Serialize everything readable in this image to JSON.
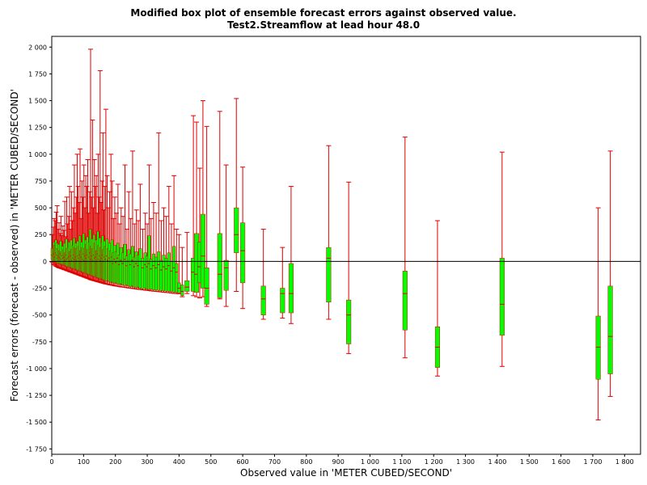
{
  "chart_data": {
    "type": "boxplot",
    "title": "Modified box plot of ensemble forecast errors against observed value.",
    "subtitle": "Test2.Streamflow at lead hour 48.0",
    "xlabel": "Observed value in 'METER CUBED/SECOND'",
    "ylabel": "Forecast errors (forecast - observed) in 'METER CUBED/SECOND'",
    "xlim": [
      0,
      1850
    ],
    "ylim": [
      -1800,
      2100
    ],
    "xticks": [
      0,
      100,
      200,
      300,
      400,
      500,
      600,
      700,
      800,
      900,
      1000,
      1100,
      1200,
      1300,
      1400,
      1500,
      1600,
      1700,
      1800
    ],
    "xtick_labels": [
      "0",
      "100",
      "200",
      "300",
      "400",
      "500",
      "600",
      "700",
      "800",
      "900",
      "1 000",
      "1 100",
      "1 200",
      "1 300",
      "1 400",
      "1 500",
      "1 600",
      "1 700",
      "1 800"
    ],
    "yticks": [
      -1750,
      -1500,
      -1250,
      -1000,
      -750,
      -500,
      -250,
      0,
      250,
      500,
      750,
      1000,
      1250,
      1500,
      1750,
      2000
    ],
    "ytick_labels": [
      "-1 750",
      "-1 500",
      "-1 250",
      "-1 000",
      "-750",
      "-500",
      "-250",
      "0",
      "250",
      "500",
      "750",
      "1 000",
      "1 250",
      "1 500",
      "1 750",
      "2 000"
    ],
    "zero_line": true,
    "grid": false,
    "colors": {
      "whisker": "#dd0000",
      "box": "#00ff00",
      "zero_line": "#000000",
      "median": "#dd0000"
    },
    "boxes": [
      {
        "x": 2,
        "min": -10,
        "q1": 20,
        "median": 60,
        "q3": 120,
        "max": 250
      },
      {
        "x": 5,
        "min": -25,
        "q1": 0,
        "median": 50,
        "q3": 110,
        "max": 320
      },
      {
        "x": 8,
        "min": -30,
        "q1": 10,
        "median": 70,
        "q3": 180,
        "max": 400
      },
      {
        "x": 11,
        "min": -40,
        "q1": -5,
        "median": 40,
        "q3": 150,
        "max": 380
      },
      {
        "x": 14,
        "min": -45,
        "q1": 0,
        "median": 80,
        "q3": 200,
        "max": 460
      },
      {
        "x": 17,
        "min": -50,
        "q1": -10,
        "median": 60,
        "q3": 170,
        "max": 520
      },
      {
        "x": 20,
        "min": -55,
        "q1": -20,
        "median": 30,
        "q3": 120,
        "max": 300
      },
      {
        "x": 23,
        "min": -60,
        "q1": -15,
        "median": 50,
        "q3": 160,
        "max": 360
      },
      {
        "x": 26,
        "min": -62,
        "q1": -25,
        "median": 35,
        "q3": 100,
        "max": 260
      },
      {
        "x": 29,
        "min": -65,
        "q1": -20,
        "median": 70,
        "q3": 190,
        "max": 420
      },
      {
        "x": 32,
        "min": -68,
        "q1": -30,
        "median": 20,
        "q3": 90,
        "max": 240
      },
      {
        "x": 35,
        "min": -70,
        "q1": -25,
        "median": 55,
        "q3": 140,
        "max": 330
      },
      {
        "x": 38,
        "min": -75,
        "q1": -35,
        "median": 30,
        "q3": 110,
        "max": 290
      },
      {
        "x": 41,
        "min": -78,
        "q1": -30,
        "median": 40,
        "q3": 170,
        "max": 560
      },
      {
        "x": 44,
        "min": -80,
        "q1": -40,
        "median": 10,
        "q3": 80,
        "max": 230
      },
      {
        "x": 47,
        "min": -85,
        "q1": -45,
        "median": 60,
        "q3": 210,
        "max": 600
      },
      {
        "x": 50,
        "min": -88,
        "q1": -50,
        "median": 20,
        "q3": 120,
        "max": 350
      },
      {
        "x": 53,
        "min": -90,
        "q1": -45,
        "median": 30,
        "q3": 130,
        "max": 420
      },
      {
        "x": 56,
        "min": -95,
        "q1": -55,
        "median": 45,
        "q3": 180,
        "max": 700
      },
      {
        "x": 59,
        "min": -98,
        "q1": -60,
        "median": 0,
        "q3": 90,
        "max": 300
      },
      {
        "x": 62,
        "min": -100,
        "q1": -55,
        "median": 50,
        "q3": 200,
        "max": 650
      },
      {
        "x": 65,
        "min": -105,
        "q1": -65,
        "median": 10,
        "q3": 110,
        "max": 380
      },
      {
        "x": 68,
        "min": -108,
        "q1": -60,
        "median": 30,
        "q3": 150,
        "max": 500
      },
      {
        "x": 71,
        "min": -110,
        "q1": -70,
        "median": 60,
        "q3": 220,
        "max": 900
      },
      {
        "x": 74,
        "min": -115,
        "q1": -75,
        "median": 20,
        "q3": 130,
        "max": 450
      },
      {
        "x": 77,
        "min": -118,
        "q1": -70,
        "median": 40,
        "q3": 170,
        "max": 600
      },
      {
        "x": 80,
        "min": -120,
        "q1": -80,
        "median": 10,
        "q3": 120,
        "max": 1000
      },
      {
        "x": 83,
        "min": -125,
        "q1": -85,
        "median": 50,
        "q3": 190,
        "max": 700
      },
      {
        "x": 86,
        "min": -128,
        "q1": -80,
        "median": 30,
        "q3": 140,
        "max": 550
      },
      {
        "x": 89,
        "min": -130,
        "q1": -90,
        "median": 60,
        "q3": 240,
        "max": 1050
      },
      {
        "x": 92,
        "min": -135,
        "q1": -95,
        "median": 0,
        "q3": 100,
        "max": 400
      },
      {
        "x": 95,
        "min": -138,
        "q1": -90,
        "median": 40,
        "q3": 180,
        "max": 750
      },
      {
        "x": 98,
        "min": -140,
        "q1": -100,
        "median": 20,
        "q3": 130,
        "max": 600
      },
      {
        "x": 101,
        "min": -145,
        "q1": -105,
        "median": 70,
        "q3": 260,
        "max": 900
      },
      {
        "x": 104,
        "min": -148,
        "q1": -100,
        "median": 10,
        "q3": 120,
        "max": 500
      },
      {
        "x": 107,
        "min": -150,
        "q1": -110,
        "median": 50,
        "q3": 200,
        "max": 800
      },
      {
        "x": 110,
        "min": -155,
        "q1": -115,
        "median": 30,
        "q3": 160,
        "max": 700
      },
      {
        "x": 113,
        "min": -158,
        "q1": -110,
        "median": 60,
        "q3": 230,
        "max": 950
      },
      {
        "x": 116,
        "min": -160,
        "q1": -120,
        "median": 0,
        "q3": 110,
        "max": 450
      },
      {
        "x": 119,
        "min": -165,
        "q1": -125,
        "median": 40,
        "q3": 180,
        "max": 650
      },
      {
        "x": 122,
        "min": -170,
        "q1": -120,
        "median": 80,
        "q3": 300,
        "max": 1980
      },
      {
        "x": 125,
        "min": -172,
        "q1": -130,
        "median": 20,
        "q3": 140,
        "max": 600
      },
      {
        "x": 128,
        "min": -175,
        "q1": -135,
        "median": 50,
        "q3": 210,
        "max": 1320
      },
      {
        "x": 131,
        "min": -178,
        "q1": -130,
        "median": 10,
        "q3": 120,
        "max": 500
      },
      {
        "x": 134,
        "min": -180,
        "q1": -140,
        "median": 60,
        "q3": 250,
        "max": 950
      },
      {
        "x": 137,
        "min": -182,
        "q1": -145,
        "median": 30,
        "q3": 170,
        "max": 700
      },
      {
        "x": 140,
        "min": -185,
        "q1": -140,
        "median": 40,
        "q3": 200,
        "max": 800
      },
      {
        "x": 143,
        "min": -188,
        "q1": -150,
        "median": 0,
        "q3": 100,
        "max": 450
      },
      {
        "x": 146,
        "min": -190,
        "q1": -155,
        "median": 70,
        "q3": 280,
        "max": 1000
      },
      {
        "x": 149,
        "min": -192,
        "q1": -150,
        "median": 20,
        "q3": 150,
        "max": 600
      },
      {
        "x": 152,
        "min": -195,
        "q1": -160,
        "median": 50,
        "q3": 220,
        "max": 1780
      },
      {
        "x": 155,
        "min": -198,
        "q1": -165,
        "median": 10,
        "q3": 130,
        "max": 550
      },
      {
        "x": 158,
        "min": -200,
        "q1": -160,
        "median": 30,
        "q3": 180,
        "max": 750
      },
      {
        "x": 161,
        "min": -202,
        "q1": -170,
        "median": 60,
        "q3": 240,
        "max": 1200
      },
      {
        "x": 164,
        "min": -205,
        "q1": -175,
        "median": 0,
        "q3": 110,
        "max": 480
      },
      {
        "x": 167,
        "min": -208,
        "q1": -170,
        "median": 40,
        "q3": 190,
        "max": 700
      },
      {
        "x": 170,
        "min": -210,
        "q1": -180,
        "median": 20,
        "q3": 140,
        "max": 1420
      },
      {
        "x": 174,
        "min": -212,
        "q1": -185,
        "median": 50,
        "q3": 210,
        "max": 800
      },
      {
        "x": 178,
        "min": -215,
        "q1": -180,
        "median": 10,
        "q3": 120,
        "max": 500
      },
      {
        "x": 182,
        "min": -218,
        "q1": -190,
        "median": 30,
        "q3": 170,
        "max": 650
      },
      {
        "x": 186,
        "min": -220,
        "q1": -195,
        "median": 0,
        "q3": 100,
        "max": 1000
      },
      {
        "x": 190,
        "min": -222,
        "q1": -190,
        "median": 40,
        "q3": 200,
        "max": 750
      },
      {
        "x": 194,
        "min": -225,
        "q1": -200,
        "median": -20,
        "q3": 80,
        "max": 400
      },
      {
        "x": 198,
        "min": -228,
        "q1": -205,
        "median": 20,
        "q3": 150,
        "max": 600
      },
      {
        "x": 203,
        "min": -230,
        "q1": -200,
        "median": -10,
        "q3": 90,
        "max": 450
      },
      {
        "x": 208,
        "min": -232,
        "q1": -210,
        "median": 30,
        "q3": 170,
        "max": 720
      },
      {
        "x": 213,
        "min": -235,
        "q1": -215,
        "median": -30,
        "q3": 60,
        "max": 350
      },
      {
        "x": 218,
        "min": -238,
        "q1": -210,
        "median": 10,
        "q3": 130,
        "max": 500
      },
      {
        "x": 224,
        "min": -240,
        "q1": -220,
        "median": -20,
        "q3": 80,
        "max": 420
      },
      {
        "x": 230,
        "min": -242,
        "q1": -225,
        "median": 20,
        "q3": 160,
        "max": 900
      },
      {
        "x": 236,
        "min": -245,
        "q1": -220,
        "median": -40,
        "q3": 50,
        "max": 300
      },
      {
        "x": 242,
        "min": -248,
        "q1": -230,
        "median": 0,
        "q3": 110,
        "max": 650
      },
      {
        "x": 248,
        "min": -250,
        "q1": -235,
        "median": -30,
        "q3": 70,
        "max": 400
      },
      {
        "x": 254,
        "min": -252,
        "q1": -230,
        "median": 10,
        "q3": 140,
        "max": 1030
      },
      {
        "x": 260,
        "min": -255,
        "q1": -240,
        "median": -50,
        "q3": 40,
        "max": 350
      },
      {
        "x": 266,
        "min": -258,
        "q1": -245,
        "median": -20,
        "q3": 90,
        "max": 480
      },
      {
        "x": 272,
        "min": -260,
        "q1": -240,
        "median": -40,
        "q3": 60,
        "max": 380
      },
      {
        "x": 278,
        "min": -262,
        "q1": -250,
        "median": 0,
        "q3": 120,
        "max": 720
      },
      {
        "x": 286,
        "min": -265,
        "q1": -255,
        "median": -60,
        "q3": 30,
        "max": 300
      },
      {
        "x": 294,
        "min": -268,
        "q1": -250,
        "median": -30,
        "q3": 80,
        "max": 450
      },
      {
        "x": 300,
        "min": -270,
        "q1": -260,
        "median": -50,
        "q3": 50,
        "max": 350
      },
      {
        "x": 306,
        "min": -272,
        "q1": -262,
        "median": -20,
        "q3": 240,
        "max": 900
      },
      {
        "x": 312,
        "min": -275,
        "q1": -260,
        "median": -70,
        "q3": 20,
        "max": 400
      },
      {
        "x": 320,
        "min": -278,
        "q1": -265,
        "median": -40,
        "q3": 70,
        "max": 550
      },
      {
        "x": 328,
        "min": -280,
        "q1": -268,
        "median": -60,
        "q3": 40,
        "max": 450
      },
      {
        "x": 336,
        "min": -282,
        "q1": -270,
        "median": -30,
        "q3": 90,
        "max": 1200
      },
      {
        "x": 344,
        "min": -285,
        "q1": -272,
        "median": -80,
        "q3": 10,
        "max": 380
      },
      {
        "x": 352,
        "min": -288,
        "q1": -275,
        "median": -50,
        "q3": 60,
        "max": 500
      },
      {
        "x": 360,
        "min": -290,
        "q1": -278,
        "median": -70,
        "q3": 30,
        "max": 420
      },
      {
        "x": 368,
        "min": -292,
        "q1": -280,
        "median": -40,
        "q3": 80,
        "max": 700
      },
      {
        "x": 376,
        "min": -295,
        "q1": -282,
        "median": -90,
        "q3": 0,
        "max": 350
      },
      {
        "x": 384,
        "min": -298,
        "q1": -285,
        "median": -60,
        "q3": 140,
        "max": 800
      },
      {
        "x": 392,
        "min": -300,
        "q1": -290,
        "median": -100,
        "q3": -20,
        "max": 300
      },
      {
        "x": 400,
        "min": -302,
        "q1": -295,
        "median": -250,
        "q3": -200,
        "max": 250
      },
      {
        "x": 410,
        "min": -330,
        "q1": -320,
        "median": -280,
        "q3": -220,
        "max": 130
      },
      {
        "x": 425,
        "min": -300,
        "q1": -280,
        "median": -240,
        "q3": -180,
        "max": 270
      },
      {
        "x": 445,
        "min": -320,
        "q1": -280,
        "median": -100,
        "q3": 30,
        "max": 1360
      },
      {
        "x": 455,
        "min": -330,
        "q1": -290,
        "median": -120,
        "q3": 260,
        "max": 1300
      },
      {
        "x": 465,
        "min": -340,
        "q1": -200,
        "median": -50,
        "q3": 180,
        "max": 870
      },
      {
        "x": 475,
        "min": -330,
        "q1": -250,
        "median": 50,
        "q3": 440,
        "max": 1500
      },
      {
        "x": 487,
        "min": -420,
        "q1": -400,
        "median": -250,
        "q3": -60,
        "max": 1260
      },
      {
        "x": 528,
        "min": -350,
        "q1": -340,
        "median": -120,
        "q3": 260,
        "max": 1400
      },
      {
        "x": 548,
        "min": -420,
        "q1": -270,
        "median": -60,
        "q3": 10,
        "max": 900
      },
      {
        "x": 580,
        "min": -280,
        "q1": 80,
        "median": 250,
        "q3": 500,
        "max": 1520
      },
      {
        "x": 600,
        "min": -440,
        "q1": -200,
        "median": 100,
        "q3": 360,
        "max": 880
      },
      {
        "x": 665,
        "min": -540,
        "q1": -500,
        "median": -350,
        "q3": -230,
        "max": 300
      },
      {
        "x": 725,
        "min": -530,
        "q1": -480,
        "median": -300,
        "q3": -250,
        "max": 130
      },
      {
        "x": 752,
        "min": -580,
        "q1": -480,
        "median": -300,
        "q3": -20,
        "max": 700
      },
      {
        "x": 870,
        "min": -540,
        "q1": -380,
        "median": 30,
        "q3": 130,
        "max": 1080
      },
      {
        "x": 933,
        "min": -860,
        "q1": -770,
        "median": -500,
        "q3": -360,
        "max": 740
      },
      {
        "x": 1110,
        "min": -900,
        "q1": -640,
        "median": -300,
        "q3": -90,
        "max": 1160
      },
      {
        "x": 1212,
        "min": -1070,
        "q1": -990,
        "median": -800,
        "q3": -610,
        "max": 380
      },
      {
        "x": 1415,
        "min": -980,
        "q1": -690,
        "median": -400,
        "q3": 30,
        "max": 1020
      },
      {
        "x": 1717,
        "min": -1480,
        "q1": -1100,
        "median": -800,
        "q3": -510,
        "max": 500
      },
      {
        "x": 1755,
        "min": -1260,
        "q1": -1050,
        "median": -700,
        "q3": -230,
        "max": 1030
      }
    ]
  }
}
